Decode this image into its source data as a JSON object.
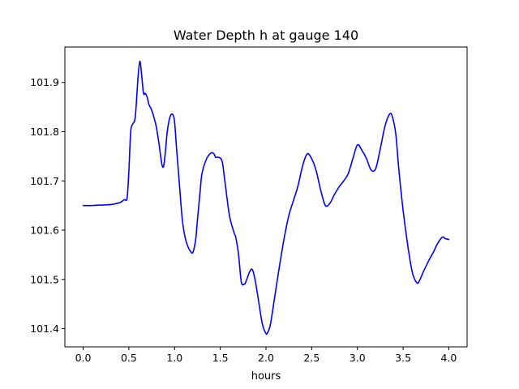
{
  "chart_data": {
    "type": "line",
    "title": "Water Depth h at gauge 140",
    "xlabel": "hours",
    "ylabel": "",
    "xlim": [
      -0.2,
      4.2
    ],
    "ylim": [
      101.363,
      101.972
    ],
    "grid": false,
    "line_color": "#0000ff",
    "x_ticks": [
      0.0,
      0.5,
      1.0,
      1.5,
      2.0,
      2.5,
      3.0,
      3.5,
      4.0
    ],
    "x_tick_labels": [
      "0.0",
      "0.5",
      "1.0",
      "1.5",
      "2.0",
      "2.5",
      "3.0",
      "3.5",
      "4.0"
    ],
    "y_ticks": [
      101.4,
      101.5,
      101.6,
      101.7,
      101.8,
      101.9
    ],
    "y_tick_labels": [
      "101.4",
      "101.5",
      "101.6",
      "101.7",
      "101.8",
      "101.9"
    ],
    "series": [
      {
        "x": [
          0.0,
          0.1,
          0.2,
          0.3,
          0.4,
          0.45,
          0.48,
          0.5,
          0.52,
          0.54,
          0.57,
          0.6,
          0.62,
          0.64,
          0.66,
          0.68,
          0.7,
          0.72,
          0.74,
          0.76,
          0.78,
          0.8,
          0.83,
          0.86,
          0.88,
          0.9,
          0.92,
          0.95,
          0.98,
          1.0,
          1.02,
          1.05,
          1.08,
          1.1,
          1.13,
          1.17,
          1.2,
          1.23,
          1.25,
          1.28,
          1.3,
          1.35,
          1.4,
          1.43,
          1.45,
          1.48,
          1.52,
          1.55,
          1.6,
          1.65,
          1.67,
          1.7,
          1.73,
          1.76,
          1.78,
          1.82,
          1.85,
          1.88,
          1.92,
          1.96,
          2.0,
          2.02,
          2.05,
          2.1,
          2.15,
          2.2,
          2.25,
          2.3,
          2.35,
          2.4,
          2.45,
          2.5,
          2.55,
          2.6,
          2.65,
          2.7,
          2.75,
          2.8,
          2.85,
          2.9,
          2.95,
          3.0,
          3.05,
          3.1,
          3.15,
          3.2,
          3.25,
          3.3,
          3.35,
          3.38,
          3.42,
          3.45,
          3.5,
          3.55,
          3.6,
          3.65,
          3.68,
          3.72,
          3.78,
          3.83,
          3.88,
          3.93,
          3.96,
          4.0
        ],
        "y": [
          101.65,
          101.65,
          101.651,
          101.652,
          101.656,
          101.662,
          101.665,
          101.72,
          101.8,
          101.815,
          101.83,
          101.91,
          101.943,
          101.915,
          101.878,
          101.878,
          101.87,
          101.855,
          101.848,
          101.838,
          101.825,
          101.81,
          101.775,
          101.735,
          101.73,
          101.76,
          101.8,
          101.83,
          101.835,
          101.82,
          101.77,
          101.7,
          101.63,
          101.6,
          101.575,
          101.558,
          101.555,
          101.58,
          101.62,
          101.68,
          101.715,
          101.745,
          101.757,
          101.755,
          101.748,
          101.748,
          101.74,
          101.7,
          101.63,
          101.595,
          101.585,
          101.55,
          101.495,
          101.49,
          101.495,
          101.515,
          101.52,
          101.5,
          101.455,
          101.41,
          101.39,
          101.393,
          101.41,
          101.47,
          101.53,
          101.585,
          101.63,
          101.66,
          101.69,
          101.73,
          101.755,
          101.745,
          101.72,
          101.68,
          101.65,
          101.655,
          101.673,
          101.688,
          101.7,
          101.715,
          101.745,
          101.773,
          101.762,
          101.745,
          101.722,
          101.725,
          101.765,
          101.81,
          101.835,
          101.832,
          101.795,
          101.73,
          101.64,
          101.57,
          101.515,
          101.493,
          101.498,
          101.515,
          101.538,
          101.555,
          101.574,
          101.586,
          101.583,
          101.581
        ]
      }
    ]
  }
}
